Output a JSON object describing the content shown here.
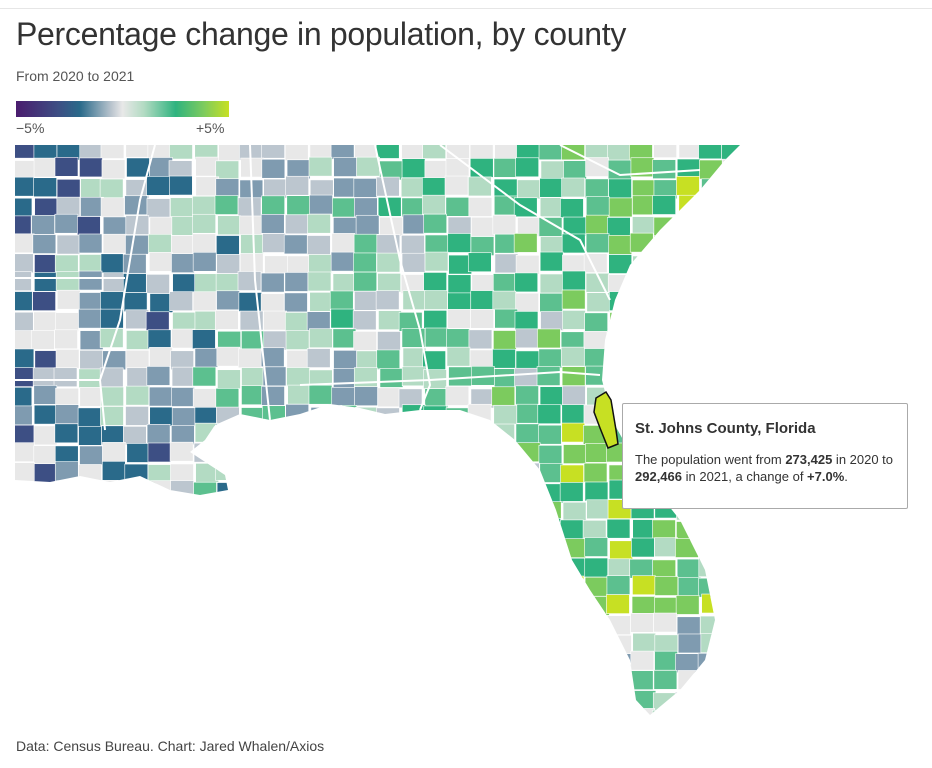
{
  "title": "Percentage change in population, by county",
  "subtitle": "From 2020 to 2021",
  "legend": {
    "min_label": "−5%",
    "max_label": "+5%",
    "scale_colors": [
      "#4a1c6e",
      "#3d4f84",
      "#2a6a8a",
      "#7f9bb0",
      "#bcc6cf",
      "#e8e8e8",
      "#b3dbc3",
      "#5cc08f",
      "#2fb37f",
      "#7ccb5e",
      "#c7e023"
    ]
  },
  "tooltip": {
    "county": "St. Johns County, Florida",
    "text_1": "The population went from ",
    "pop_2020": "273,425",
    "text_2": " in 2020 to ",
    "pop_2021": "292,466",
    "text_3": " in 2021, a change of ",
    "change": "+7.0%",
    "text_4": "."
  },
  "highlighted_county": {
    "name": "St. Johns County, Florida",
    "change_pct": 7.0,
    "color": "#c7e023"
  },
  "source": "Data: Census Bureau. Chart: Jared Whalen/Axios"
}
